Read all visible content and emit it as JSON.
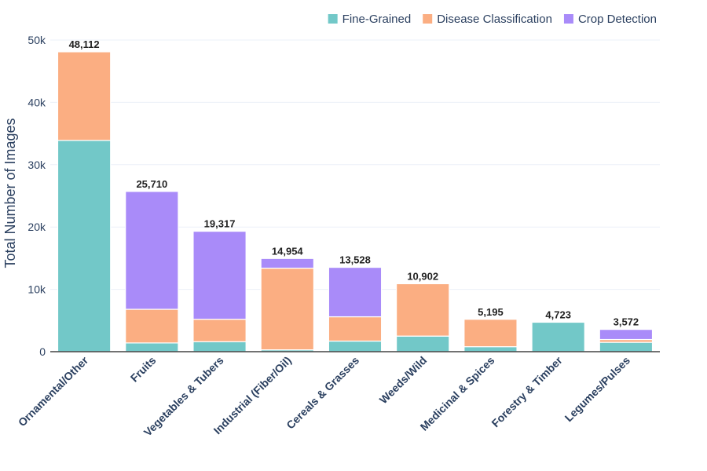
{
  "chart_data": {
    "type": "bar",
    "stacked": true,
    "title": "",
    "xlabel": "",
    "ylabel": "Total Number of Images",
    "ylim": [
      0,
      50000
    ],
    "yticks": [
      0,
      10000,
      20000,
      30000,
      40000,
      50000
    ],
    "ytick_labels": [
      "0",
      "10k",
      "20k",
      "30k",
      "40k",
      "50k"
    ],
    "legend_position": "top-right",
    "categories": [
      "Ornamental/Other",
      "Fruits",
      "Vegetables & Tubers",
      "Industrial (Fiber/Oil)",
      "Cereals & Grasses",
      "Weeds/Wild",
      "Medicinal & Spices",
      "Forestry & Timber",
      "Legumes/Pulses"
    ],
    "series": [
      {
        "name": "Fine-Grained",
        "color": "#72C8C8",
        "values": [
          33900,
          1400,
          1600,
          300,
          1700,
          2500,
          800,
          4723,
          1500
        ]
      },
      {
        "name": "Disease Classification",
        "color": "#FBAE82",
        "values": [
          14212,
          5400,
          3600,
          13100,
          3900,
          8402,
          4395,
          0,
          450
        ]
      },
      {
        "name": "Crop Detection",
        "color": "#A98BF9",
        "values": [
          0,
          18910,
          14117,
          1554,
          7928,
          0,
          0,
          0,
          1622
        ]
      }
    ],
    "totals": [
      48112,
      25710,
      19317,
      14954,
      13528,
      10902,
      5195,
      4723,
      3572
    ],
    "total_labels": [
      "48,112",
      "25,710",
      "19,317",
      "14,954",
      "13,528",
      "10,902",
      "5,195",
      "4,723",
      "3,572"
    ]
  }
}
